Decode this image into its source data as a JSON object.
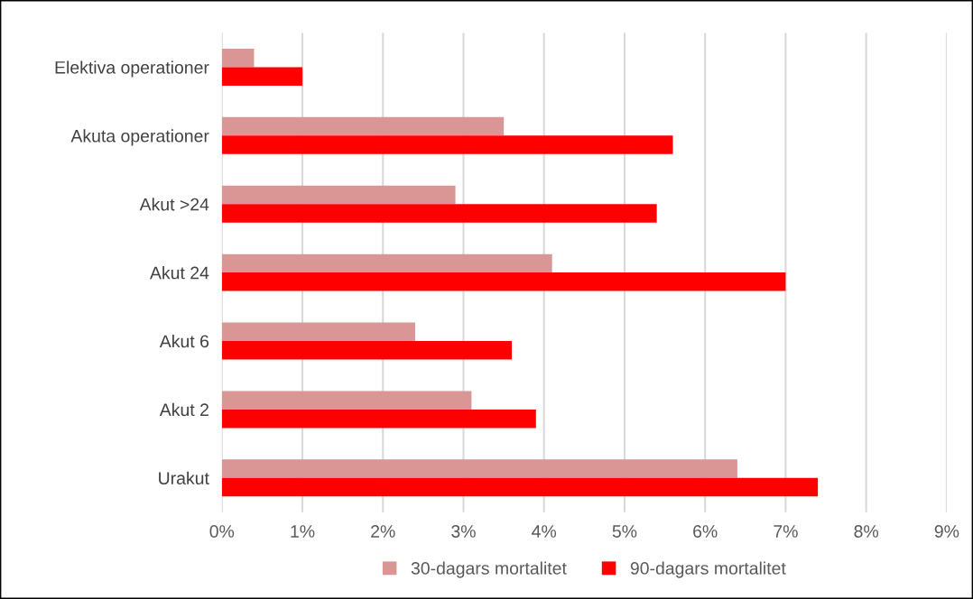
{
  "chart_data": {
    "type": "bar",
    "orientation": "horizontal",
    "categories": [
      "Elektiva operationer",
      "Akuta operationer",
      "Akut >24",
      "Akut 24",
      "Akut 6",
      "Akut 2",
      "Urakut"
    ],
    "series": [
      {
        "name": "30-dagars mortalitet",
        "color": "#d99694",
        "values": [
          0.4,
          3.5,
          2.9,
          4.1,
          2.4,
          3.1,
          6.4
        ]
      },
      {
        "name": "90-dagars mortalitet",
        "color": "#ff0000",
        "values": [
          1.0,
          5.6,
          5.4,
          7.0,
          3.6,
          3.9,
          7.4
        ]
      }
    ],
    "xlim": [
      0,
      9
    ],
    "xticks": [
      {
        "value": 0,
        "label": "0%"
      },
      {
        "value": 1,
        "label": "1%"
      },
      {
        "value": 2,
        "label": "2%"
      },
      {
        "value": 3,
        "label": "3%"
      },
      {
        "value": 4,
        "label": "4%"
      },
      {
        "value": 5,
        "label": "5%"
      },
      {
        "value": 6,
        "label": "6%"
      },
      {
        "value": 7,
        "label": "7%"
      },
      {
        "value": 8,
        "label": "8%"
      },
      {
        "value": 9,
        "label": "9%"
      }
    ],
    "grid": "x",
    "legend": "bottom"
  }
}
